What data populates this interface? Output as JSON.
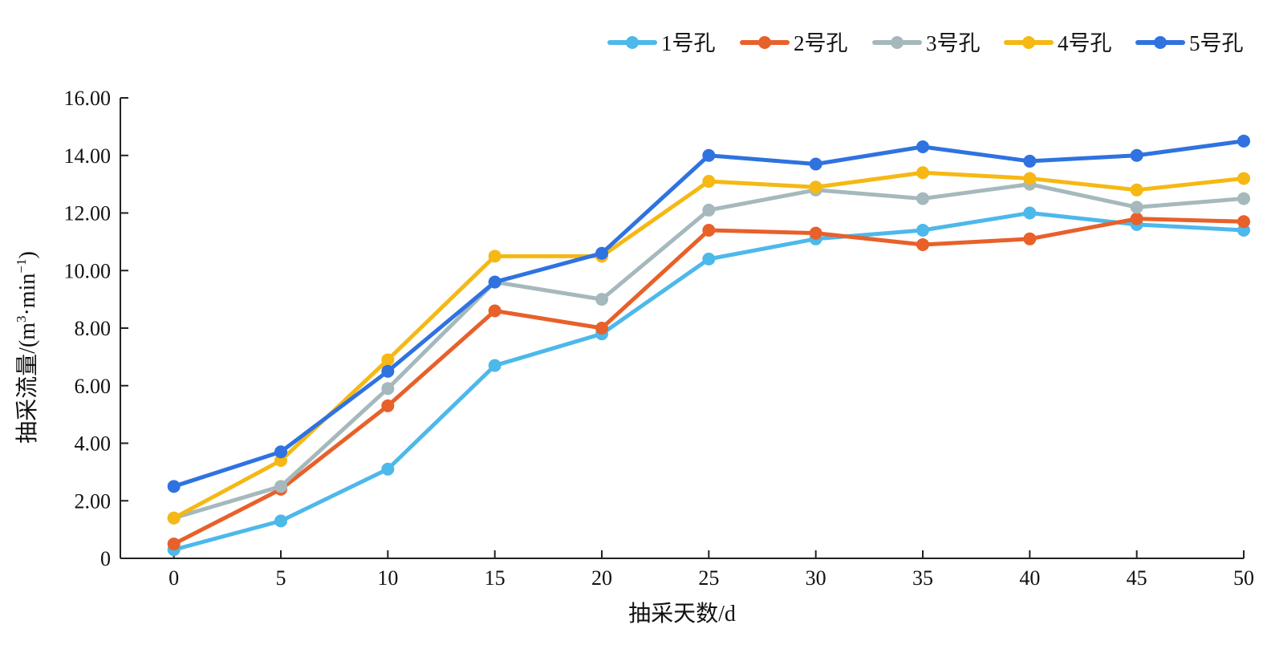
{
  "chart_data": {
    "type": "line",
    "x": [
      0,
      5,
      10,
      15,
      20,
      25,
      30,
      35,
      40,
      45,
      50
    ],
    "x_tick_labels": [
      "0",
      "5",
      "10",
      "15",
      "20",
      "25",
      "30",
      "35",
      "40",
      "45",
      "50"
    ],
    "y_ticks": [
      0,
      2,
      4,
      6,
      8,
      10,
      12,
      14,
      16
    ],
    "y_tick_labels": [
      "0",
      "2.00",
      "4.00",
      "6.00",
      "8.00",
      "10.00",
      "12.00",
      "14.00",
      "16.00"
    ],
    "xlim": [
      -2.5,
      50
    ],
    "ylim": [
      0,
      16
    ],
    "xlabel": "抽采天数/d",
    "ylabel": {
      "text": "抽采流量/(m",
      "sup1": "3",
      "mid": "·min",
      "sup2": "−1",
      "end": ")"
    },
    "grid": false,
    "legend_position": "top-right",
    "series": [
      {
        "name": "1号孔",
        "color": "#4db8ea",
        "values": [
          0.3,
          1.3,
          3.1,
          6.7,
          7.8,
          10.4,
          11.1,
          11.4,
          12.0,
          11.6,
          11.4
        ]
      },
      {
        "name": "2号孔",
        "color": "#e8602a",
        "values": [
          0.5,
          2.4,
          5.3,
          8.6,
          8.0,
          11.4,
          11.3,
          10.9,
          11.1,
          11.8,
          11.7
        ]
      },
      {
        "name": "3号孔",
        "color": "#a5b9bd",
        "values": [
          1.4,
          2.5,
          5.9,
          9.6,
          9.0,
          12.1,
          12.8,
          12.5,
          13.0,
          12.2,
          12.5
        ]
      },
      {
        "name": "4号孔",
        "color": "#f5b814",
        "values": [
          1.4,
          3.4,
          6.9,
          10.5,
          10.5,
          13.1,
          12.9,
          13.4,
          13.2,
          12.8,
          13.2
        ]
      },
      {
        "name": "5号孔",
        "color": "#2f72e0",
        "values": [
          2.5,
          3.7,
          6.5,
          9.6,
          10.6,
          14.0,
          13.7,
          14.3,
          13.8,
          14.0,
          14.5
        ]
      }
    ]
  }
}
